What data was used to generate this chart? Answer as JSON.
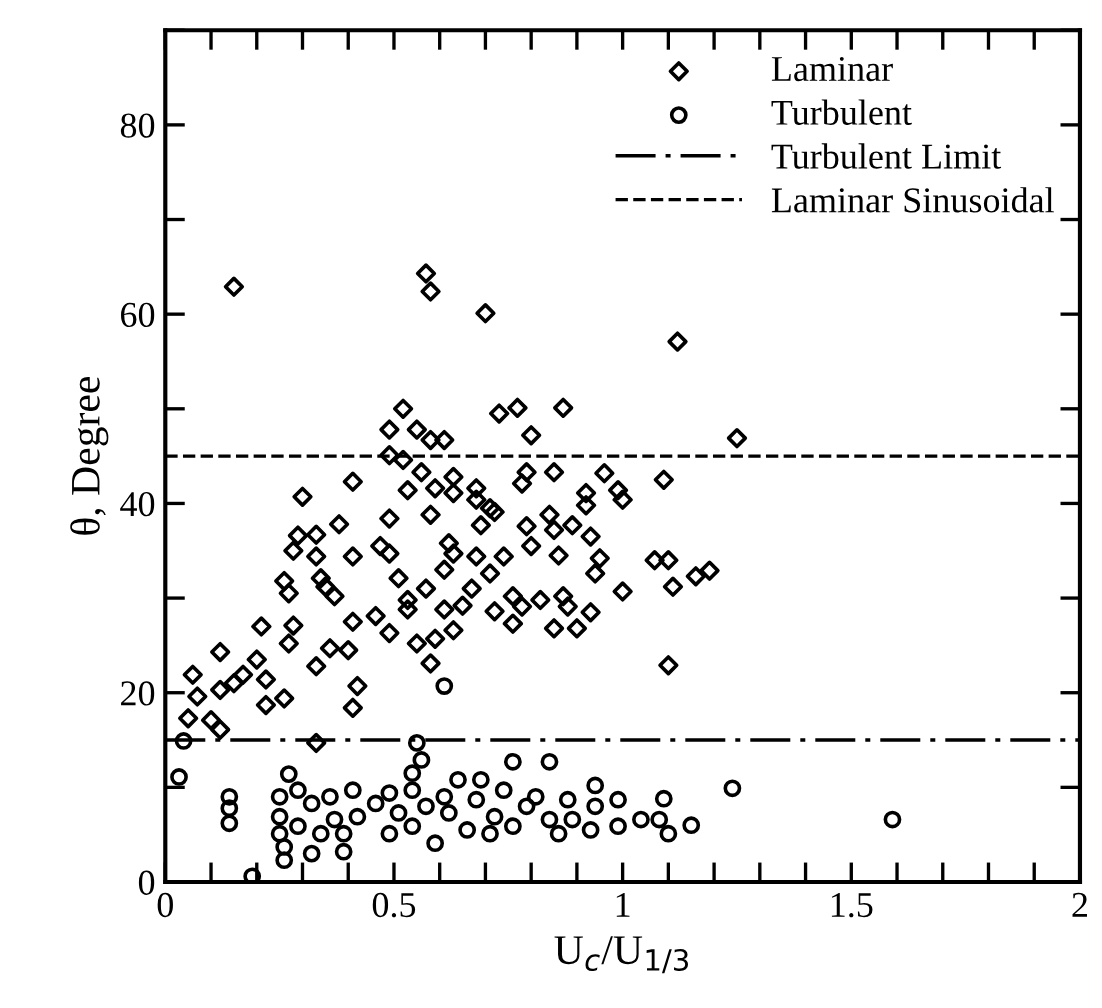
{
  "chart_data": {
    "type": "scatter",
    "xlabel": "U$_{c}$/U$_{1/3}$",
    "ylabel": "θ, Degree",
    "xlim": [
      0,
      2
    ],
    "ylim": [
      0,
      90
    ],
    "xticks": [
      0,
      {
        "value": 0.1,
        "label": null
      },
      {
        "value": 0.2,
        "label": null
      },
      {
        "value": 0.3,
        "label": null
      },
      {
        "value": 0.4,
        "label": null
      },
      0.5,
      {
        "value": 0.6,
        "label": null
      },
      {
        "value": 0.7,
        "label": null
      },
      {
        "value": 0.8,
        "label": null
      },
      {
        "value": 0.9,
        "label": null
      },
      1,
      {
        "value": 1.1,
        "label": null
      },
      {
        "value": 1.2,
        "label": null
      },
      {
        "value": 1.3,
        "label": null
      },
      {
        "value": 1.4,
        "label": null
      },
      1.5,
      {
        "value": 1.6,
        "label": null
      },
      {
        "value": 1.7,
        "label": null
      },
      {
        "value": 1.8,
        "label": null
      },
      {
        "value": 1.9,
        "label": null
      },
      2
    ],
    "yticks": [
      0,
      {
        "value": 10,
        "label": null
      },
      20,
      {
        "value": 30,
        "label": null
      },
      40,
      {
        "value": 50,
        "label": null
      },
      60,
      {
        "value": 70,
        "label": null
      },
      80,
      {
        "value": 90,
        "label": null
      }
    ],
    "grid": false,
    "legend": "top right",
    "series": [
      {
        "name": "Laminar",
        "color": "#000000",
        "marker": "diamond",
        "x": [
          0.15,
          0.57,
          0.58,
          0.7,
          1.12,
          0.52,
          0.49,
          0.55,
          0.58,
          0.61,
          0.73,
          0.77,
          0.87,
          0.8,
          1.25,
          0.49,
          0.52,
          0.56,
          0.41,
          0.3,
          0.53,
          0.59,
          0.63,
          0.63,
          0.68,
          0.68,
          0.78,
          0.85,
          0.79,
          0.96,
          0.92,
          0.92,
          0.99,
          1.0,
          1.09,
          0.49,
          0.58,
          0.71,
          0.72,
          0.69,
          0.84,
          0.85,
          0.89,
          0.93,
          0.38,
          0.29,
          0.33,
          0.28,
          0.33,
          0.41,
          0.47,
          0.49,
          0.62,
          0.63,
          0.68,
          0.74,
          0.79,
          0.8,
          0.86,
          0.95,
          0.94,
          1.07,
          1.1,
          1.19,
          1.16,
          1.11,
          1.0,
          0.26,
          0.27,
          0.34,
          0.35,
          0.37,
          0.51,
          0.57,
          0.61,
          0.67,
          0.71,
          0.53,
          0.53,
          0.61,
          0.65,
          0.72,
          0.76,
          0.78,
          0.82,
          0.87,
          0.88,
          0.93,
          0.76,
          0.85,
          0.9,
          0.41,
          0.46,
          0.49,
          0.21,
          0.28,
          0.27,
          0.55,
          0.59,
          0.63,
          0.12,
          0.4,
          0.36,
          0.06,
          0.07,
          0.05,
          0.1,
          0.12,
          0.12,
          0.15,
          0.17,
          0.2,
          0.22,
          0.26,
          0.22,
          0.33,
          0.42,
          0.41,
          0.58,
          1.1,
          0.33
        ],
        "values": [
          62.9,
          64.3,
          62.4,
          60.1,
          57.1,
          50.0,
          47.8,
          47.8,
          46.7,
          46.7,
          49.5,
          50.1,
          50.1,
          47.2,
          46.9,
          45.1,
          44.6,
          43.3,
          42.3,
          40.7,
          41.4,
          41.6,
          42.8,
          41.1,
          41.6,
          40.4,
          42.1,
          43.3,
          43.3,
          43.2,
          41.1,
          39.8,
          41.4,
          40.4,
          42.5,
          38.4,
          38.8,
          39.5,
          39.1,
          37.7,
          38.8,
          37.2,
          37.7,
          36.5,
          37.8,
          36.6,
          36.7,
          35.0,
          34.4,
          34.4,
          35.5,
          34.7,
          35.8,
          34.7,
          34.4,
          34.4,
          37.6,
          35.5,
          34.5,
          34.2,
          32.6,
          34.0,
          34.0,
          32.9,
          32.3,
          31.2,
          30.7,
          31.8,
          30.5,
          32.1,
          31.2,
          30.2,
          32.1,
          31.0,
          33.0,
          31.0,
          32.6,
          29.8,
          28.8,
          28.8,
          29.2,
          28.6,
          30.2,
          29.1,
          29.8,
          30.2,
          29.1,
          28.5,
          27.3,
          26.8,
          26.8,
          27.5,
          28.1,
          26.3,
          27.0,
          27.1,
          25.2,
          25.2,
          25.7,
          26.6,
          24.3,
          24.5,
          24.7,
          21.9,
          19.6,
          17.3,
          17.1,
          16.1,
          20.3,
          21.0,
          21.9,
          23.5,
          21.4,
          19.4,
          18.7,
          22.8,
          20.7,
          18.4,
          23.1,
          22.9,
          14.7
        ]
      },
      {
        "name": "Turbulent",
        "color": "#000000",
        "marker": "circle",
        "x": [
          0.61,
          0.55,
          0.04,
          0.03,
          0.14,
          0.14,
          0.14,
          0.19,
          0.25,
          0.25,
          0.25,
          0.26,
          0.26,
          0.27,
          0.29,
          0.29,
          0.32,
          0.32,
          0.34,
          0.36,
          0.37,
          0.39,
          0.41,
          0.39,
          0.42,
          0.46,
          0.49,
          0.49,
          0.51,
          0.54,
          0.54,
          0.56,
          0.54,
          0.57,
          0.59,
          0.61,
          0.62,
          0.64,
          0.66,
          0.68,
          0.69,
          0.71,
          0.72,
          0.74,
          0.76,
          0.76,
          0.79,
          0.81,
          0.84,
          0.84,
          0.86,
          0.88,
          0.89,
          0.93,
          0.94,
          0.94,
          0.99,
          0.99,
          1.04,
          1.08,
          1.09,
          1.1,
          1.15,
          1.24,
          1.59
        ],
        "values": [
          20.7,
          14.7,
          14.9,
          11.1,
          9.0,
          7.8,
          6.2,
          0.6,
          9.0,
          6.9,
          5.1,
          3.7,
          2.3,
          11.4,
          9.7,
          5.9,
          3.0,
          8.3,
          5.1,
          9.0,
          6.6,
          3.2,
          9.7,
          5.1,
          6.9,
          8.3,
          9.4,
          5.1,
          7.3,
          9.7,
          11.5,
          12.9,
          5.9,
          8.0,
          4.1,
          9.0,
          7.3,
          10.8,
          5.5,
          8.7,
          10.8,
          5.1,
          6.9,
          9.7,
          12.7,
          5.9,
          8.0,
          9.0,
          12.7,
          6.6,
          5.1,
          8.7,
          6.6,
          5.5,
          10.2,
          8.0,
          8.7,
          5.9,
          6.6,
          6.6,
          8.8,
          5.1,
          6.0,
          9.9,
          6.6
        ]
      }
    ],
    "ref_lines": [
      {
        "axis": "y",
        "value": 15,
        "label": "Turbulent Limit",
        "color": "#000000",
        "line_style": "dashdot"
      },
      {
        "axis": "y",
        "value": 45,
        "label": "Laminar Sinusoidal",
        "color": "#000000",
        "line_style": "dashed"
      }
    ]
  }
}
